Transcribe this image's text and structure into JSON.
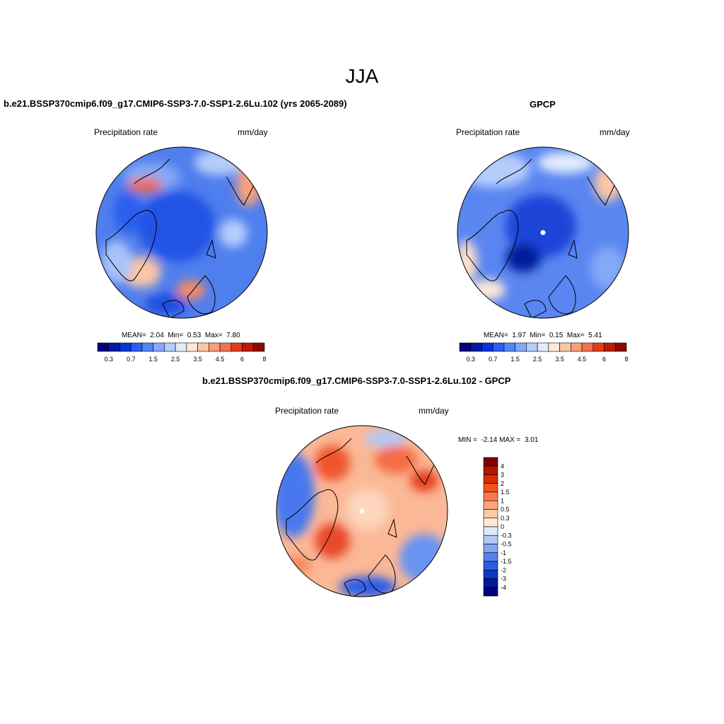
{
  "figure": {
    "season_title": "JJA"
  },
  "panel_model": {
    "title": "b.e21.BSSP370cmip6.f09_g17.CMIP6-SSP3-7.0-SSP1-2.6Lu.102 (yrs 2065-2089)",
    "variable": "Precipitation rate",
    "units": "mm/day",
    "stats": {
      "mean_label": "MEAN=",
      "mean": "2.04",
      "min_label": "Min=",
      "min": "0.53",
      "max_label": "Max=",
      "max": "7.80"
    }
  },
  "panel_obs": {
    "title": "GPCP",
    "variable": "Precipitation rate",
    "units": "mm/day",
    "stats": {
      "mean_label": "MEAN=",
      "mean": "1.97",
      "min_label": "Min=",
      "min": "0.15",
      "max_label": "Max=",
      "max": "5.41"
    }
  },
  "panel_diff": {
    "title": "b.e21.BSSP370cmip6.f09_g17.CMIP6-SSP3-7.0-SSP1-2.6Lu.102 - GPCP",
    "variable": "Precipitation rate",
    "units": "mm/day",
    "min_label": "MIN =",
    "min": "-2.14",
    "max_label": "MAX =",
    "max": "3.01"
  },
  "colorbar_abs": {
    "tick_labels": [
      "0.3",
      "0.7",
      "1.5",
      "2.5",
      "3.5",
      "4.5",
      "6",
      "8"
    ],
    "colors": [
      "#00007f",
      "#0019a8",
      "#0535d6",
      "#2a5ef0",
      "#5585f5",
      "#85a8f8",
      "#b5cdfb",
      "#e2edfc",
      "#fde8d5",
      "#fcc6a5",
      "#f99e76",
      "#f5704e",
      "#e43c1a",
      "#bd1a07",
      "#8a0a00"
    ]
  },
  "colorbar_diff": {
    "tick_labels": [
      "4",
      "3",
      "2",
      "1.5",
      "1",
      "0.5",
      "0.3",
      "0",
      "-0.3",
      "-0.5",
      "-1",
      "-1.5",
      "-2",
      "-3",
      "-4"
    ],
    "colors": [
      "#7f0000",
      "#b31500",
      "#d92b05",
      "#f2521c",
      "#f87a4c",
      "#fba57d",
      "#fdcaa8",
      "#fdebd6",
      "#dde8f8",
      "#b0c9f7",
      "#82a5f3",
      "#5580f0",
      "#2a5be8",
      "#0a37c8",
      "#001a9e",
      "#00007a"
    ]
  }
}
